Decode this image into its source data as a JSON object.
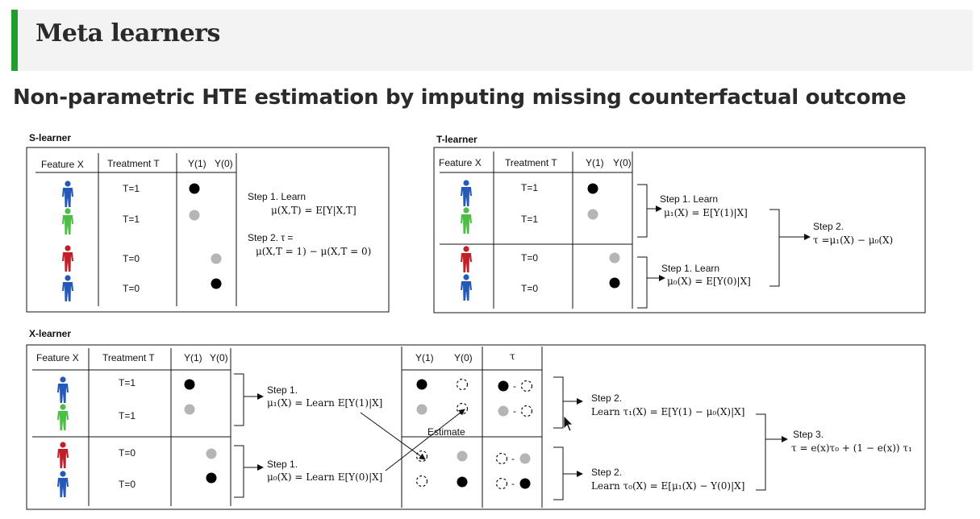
{
  "slide": {
    "title": "Meta learners",
    "subtitle": "Non-parametric HTE estimation by imputing missing counterfactual outcome",
    "accent_color": "#1f9e2e"
  },
  "colors": {
    "blue": "#2459b8",
    "green": "#4cbd45",
    "red": "#c0202a",
    "gray": "#b5b5b5",
    "black": "#000000"
  },
  "s_learner": {
    "label": "S-learner",
    "col_feature": "Feature X",
    "col_treatment": "Treatment T",
    "col_y1": "Y(1)",
    "col_y0": "Y(0)",
    "rows": [
      {
        "person": "blue",
        "t": "T=1"
      },
      {
        "person": "green",
        "t": "T=1"
      },
      {
        "person": "red",
        "t": "T=0"
      },
      {
        "person": "blue",
        "t": "T=0"
      }
    ],
    "step1_title": "Step 1. Learn",
    "step1_formula": "μ(X,T) = E[Y|X,T]",
    "step2_title": "Step 2. τ =",
    "step2_formula": "μ(X,T = 1) − μ(X,T = 0)"
  },
  "t_learner": {
    "label": "T-learner",
    "col_feature": "Feature X",
    "col_treatment": "Treatment T",
    "col_y1": "Y(1)",
    "col_y0": "Y(0)",
    "rows": [
      {
        "person": "blue",
        "t": "T=1"
      },
      {
        "person": "green",
        "t": "T=1"
      },
      {
        "person": "red",
        "t": "T=0"
      },
      {
        "person": "blue",
        "t": "T=0"
      }
    ],
    "step1a_title": "Step 1. Learn",
    "step1a_formula": "μ₁(X) = E[Y(1)|X]",
    "step1b_title": "Step 1. Learn",
    "step1b_formula": "μ₀(X) = E[Y(0)|X]",
    "step2_title": "Step 2.",
    "step2_formula": "τ =μ₁(X) − μ₀(X)"
  },
  "x_learner": {
    "label": "X-learner",
    "col_feature": "Feature X",
    "col_treatment": "Treatment T",
    "col_y1": "Y(1)",
    "col_y0": "Y(0)",
    "rows": [
      {
        "person": "blue",
        "t": "T=1"
      },
      {
        "person": "green",
        "t": "T=1"
      },
      {
        "person": "red",
        "t": "T=0"
      },
      {
        "person": "blue",
        "t": "T=0"
      }
    ],
    "step1a_title": "Step 1.",
    "step1a_formula": "μ₁(X) = Learn E[Y(1)|X]",
    "step1b_title": "Step 1.",
    "step1b_formula": "μ₀(X) = Learn E[Y(0)|X]",
    "estimate": "Estimate",
    "col2_y1": "Y(1)",
    "col2_y0": "Y(0)",
    "col2_tau": "τ",
    "tau_dash": "-",
    "step2a_title": "Step 2.",
    "step2a_formula": "Learn τ₁(X) = E[Y(1) − μ₀(X)|X]",
    "step2b_title": "Step 2.",
    "step2b_formula": "Learn τ₀(X) = E[μ₁(X) − Y(0)|X]",
    "step3_title": "Step 3.",
    "step3_formula": "τ = e(x)τ₀ + (1 − e(x)) τ₁"
  }
}
